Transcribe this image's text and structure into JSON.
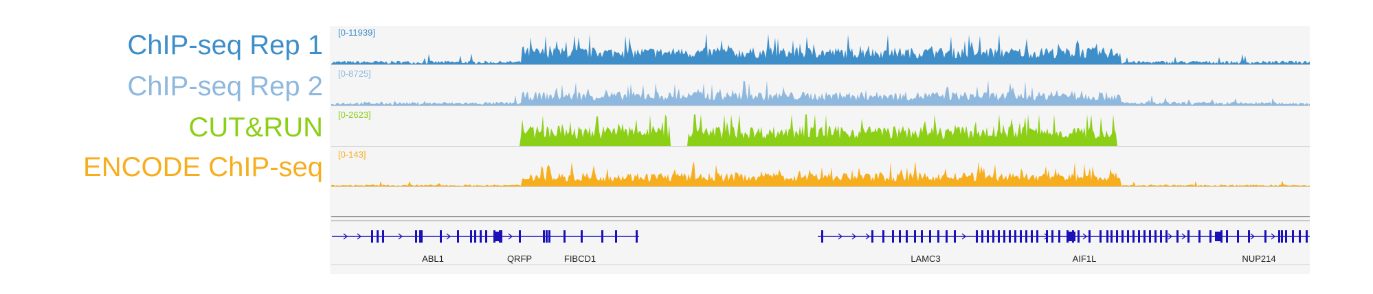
{
  "tracks": [
    {
      "label": "ChIP-seq Rep 1",
      "range": "[0-11939]",
      "color": "#3d8ec9"
    },
    {
      "label": "ChIP-seq Rep 2",
      "range": "[0-8725]",
      "color": "#8fb8de"
    },
    {
      "label": "CUT&RUN",
      "range": "[0-2623]",
      "color": "#8ccf17"
    },
    {
      "label": "ENCODE ChIP-seq",
      "range": "[0-143]",
      "color": "#f7ae1e"
    }
  ],
  "genes": [
    "ABL1",
    "QRFP",
    "FIBCD1",
    "LAMC3",
    "AIF1L",
    "NUP214"
  ],
  "gene_color": "#1a10b8"
}
